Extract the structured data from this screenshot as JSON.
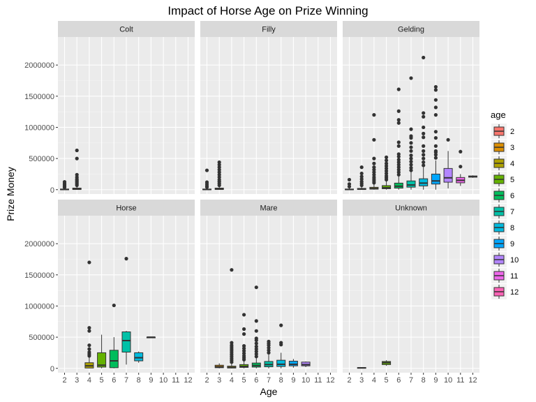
{
  "chart_data": {
    "type": "boxplot",
    "title": "Impact of Horse Age on Prize Winning",
    "xlabel": "Age",
    "ylabel": "Prize Money",
    "x_categories": [
      "2",
      "3",
      "4",
      "5",
      "6",
      "7",
      "8",
      "9",
      "10",
      "11",
      "12"
    ],
    "ylim": [
      -70000,
      2450000
    ],
    "y_ticks": [
      0,
      500000,
      1000000,
      1500000,
      2000000
    ],
    "y_tick_labels": [
      "0",
      "500000",
      "1000000",
      "1500000",
      "2000000"
    ],
    "grid": true,
    "legend": {
      "title": "age",
      "position": "right",
      "entries": [
        {
          "label": "2",
          "color": "#F8766D"
        },
        {
          "label": "3",
          "color": "#DB8E00"
        },
        {
          "label": "4",
          "color": "#AEA200"
        },
        {
          "label": "5",
          "color": "#64B200"
        },
        {
          "label": "6",
          "color": "#00BD5C"
        },
        {
          "label": "7",
          "color": "#00C1A7"
        },
        {
          "label": "8",
          "color": "#00BADE"
        },
        {
          "label": "9",
          "color": "#00A6FF"
        },
        {
          "label": "10",
          "color": "#B385FF"
        },
        {
          "label": "11",
          "color": "#EF67EB"
        },
        {
          "label": "12",
          "color": "#FF63B6"
        }
      ]
    },
    "panels": [
      {
        "name": "Colt",
        "boxes": [
          {
            "age": "2",
            "min": 0,
            "q1": 0,
            "median": 3000,
            "q3": 10000,
            "max": 25000,
            "outliers": [
              35000,
              50000,
              65000,
              80000,
              100000,
              125000
            ]
          },
          {
            "age": "3",
            "min": 0,
            "q1": 3000,
            "median": 8000,
            "q3": 25000,
            "max": 55000,
            "outliers": [
              70000,
              90000,
              110000,
              130000,
              150000,
              170000,
              200000,
              240000,
              500000,
              630000
            ]
          }
        ]
      },
      {
        "name": "Filly",
        "boxes": [
          {
            "age": "2",
            "min": 0,
            "q1": 0,
            "median": 3000,
            "q3": 10000,
            "max": 25000,
            "outliers": [
              40000,
              60000,
              90000,
              120000,
              310000
            ]
          },
          {
            "age": "3",
            "min": 0,
            "q1": 3000,
            "median": 8000,
            "q3": 25000,
            "max": 55000,
            "outliers": [
              70000,
              100000,
              130000,
              160000,
              200000,
              240000,
              280000,
              320000,
              360000,
              400000,
              440000
            ]
          }
        ]
      },
      {
        "name": "Gelding",
        "boxes": [
          {
            "age": "2",
            "min": 0,
            "q1": 0,
            "median": 3000,
            "q3": 10000,
            "max": 30000,
            "outliers": [
              50000,
              90000,
              160000
            ]
          },
          {
            "age": "3",
            "min": 0,
            "q1": 3000,
            "median": 8000,
            "q3": 20000,
            "max": 50000,
            "outliers": [
              70000,
              100000,
              130000,
              170000,
              210000,
              260000,
              360000
            ]
          },
          {
            "age": "4",
            "min": 0,
            "q1": 8000,
            "median": 18000,
            "q3": 38000,
            "max": 90000,
            "outliers": [
              110000,
              140000,
              170000,
              200000,
              240000,
              280000,
              320000,
              360000,
              420000,
              500000,
              800000,
              1200000
            ]
          },
          {
            "age": "5",
            "min": 0,
            "q1": 15000,
            "median": 30000,
            "q3": 65000,
            "max": 140000,
            "outliers": [
              160000,
              190000,
              220000,
              260000,
              300000,
              340000,
              380000,
              420000,
              470000,
              520000
            ]
          },
          {
            "age": "6",
            "min": 0,
            "q1": 25000,
            "median": 55000,
            "q3": 105000,
            "max": 220000,
            "outliers": [
              240000,
              280000,
              320000,
              360000,
              400000,
              440000,
              480000,
              530000,
              570000,
              700000,
              760000,
              1070000,
              1120000,
              1260000,
              1610000
            ]
          },
          {
            "age": "7",
            "min": 0,
            "q1": 40000,
            "median": 75000,
            "q3": 140000,
            "max": 290000,
            "outliers": [
              310000,
              350000,
              400000,
              450000,
              500000,
              550000,
              620000,
              680000,
              750000,
              830000,
              860000,
              970000,
              1790000
            ]
          },
          {
            "age": "8",
            "min": 0,
            "q1": 60000,
            "median": 105000,
            "q3": 175000,
            "max": 360000,
            "outliers": [
              390000,
              440000,
              500000,
              560000,
              620000,
              700000,
              840000,
              900000,
              1000000,
              1170000,
              1230000,
              2120000
            ]
          },
          {
            "age": "9",
            "min": 0,
            "q1": 90000,
            "median": 140000,
            "q3": 250000,
            "max": 470000,
            "outliers": [
              510000,
              560000,
              600000,
              620000,
              700000,
              830000,
              930000,
              1200000,
              1320000,
              1440000,
              1600000,
              1650000
            ]
          },
          {
            "age": "10",
            "min": 20000,
            "q1": 120000,
            "median": 190000,
            "q3": 340000,
            "max": 620000,
            "outliers": [
              800000
            ]
          },
          {
            "age": "11",
            "min": 60000,
            "q1": 110000,
            "median": 150000,
            "q3": 195000,
            "max": 250000,
            "outliers": [
              370000,
              610000
            ]
          },
          {
            "age": "12",
            "min": 190000,
            "q1": 200000,
            "median": 210000,
            "q3": 220000,
            "max": 230000,
            "outliers": []
          }
        ]
      },
      {
        "name": "Horse",
        "boxes": [
          {
            "age": "4",
            "min": 0,
            "q1": 5000,
            "median": 40000,
            "q3": 90000,
            "max": 180000,
            "outliers": [
              200000,
              230000,
              260000,
              310000,
              370000,
              600000,
              650000,
              1700000
            ]
          },
          {
            "age": "5",
            "min": 0,
            "q1": 20000,
            "median": 50000,
            "q3": 250000,
            "max": 540000,
            "outliers": []
          },
          {
            "age": "6",
            "min": 0,
            "q1": 10000,
            "median": 120000,
            "q3": 290000,
            "max": 500000,
            "outliers": [
              1010000
            ]
          },
          {
            "age": "7",
            "min": 60000,
            "q1": 260000,
            "median": 445000,
            "q3": 585000,
            "max": 600000,
            "outliers": [
              1760000
            ]
          },
          {
            "age": "8",
            "min": 90000,
            "q1": 120000,
            "median": 170000,
            "q3": 250000,
            "max": 270000,
            "outliers": []
          },
          {
            "age": "9",
            "min": 500000,
            "q1": 500000,
            "median": 500000,
            "q3": 500000,
            "max": 500000,
            "outliers": []
          }
        ]
      },
      {
        "name": "Mare",
        "boxes": [
          {
            "age": "3",
            "min": 0,
            "q1": 10000,
            "median": 25000,
            "q3": 50000,
            "max": 80000,
            "outliers": []
          },
          {
            "age": "4",
            "min": 0,
            "q1": 5000,
            "median": 15000,
            "q3": 35000,
            "max": 80000,
            "outliers": [
              100000,
              130000,
              160000,
              190000,
              220000,
              250000,
              280000,
              310000,
              340000,
              370000,
              410000,
              1580000
            ]
          },
          {
            "age": "5",
            "min": 0,
            "q1": 15000,
            "median": 30000,
            "q3": 60000,
            "max": 120000,
            "outliers": [
              140000,
              170000,
              200000,
              240000,
              280000,
              320000,
              360000,
              550000,
              630000,
              860000
            ]
          },
          {
            "age": "6",
            "min": 0,
            "q1": 20000,
            "median": 45000,
            "q3": 85000,
            "max": 170000,
            "outliers": [
              190000,
              230000,
              270000,
              310000,
              350000,
              400000,
              450000,
              480000,
              600000,
              760000,
              1300000
            ]
          },
          {
            "age": "7",
            "min": 0,
            "q1": 25000,
            "median": 60000,
            "q3": 110000,
            "max": 220000,
            "outliers": [
              250000,
              290000,
              330000,
              370000,
              400000,
              430000
            ]
          },
          {
            "age": "8",
            "min": 0,
            "q1": 30000,
            "median": 65000,
            "q3": 130000,
            "max": 250000,
            "outliers": [
              380000,
              410000,
              690000
            ]
          },
          {
            "age": "9",
            "min": 10000,
            "q1": 40000,
            "median": 65000,
            "q3": 115000,
            "max": 150000,
            "outliers": []
          },
          {
            "age": "10",
            "min": 20000,
            "q1": 40000,
            "median": 60000,
            "q3": 100000,
            "max": 110000,
            "outliers": []
          }
        ]
      },
      {
        "name": "Unknown",
        "boxes": [
          {
            "age": "3",
            "min": 3000,
            "q1": 5000,
            "median": 8000,
            "q3": 12000,
            "max": 15000,
            "outliers": []
          },
          {
            "age": "5",
            "min": 40000,
            "q1": 60000,
            "median": 90000,
            "q3": 110000,
            "max": 130000,
            "outliers": []
          }
        ]
      }
    ]
  }
}
